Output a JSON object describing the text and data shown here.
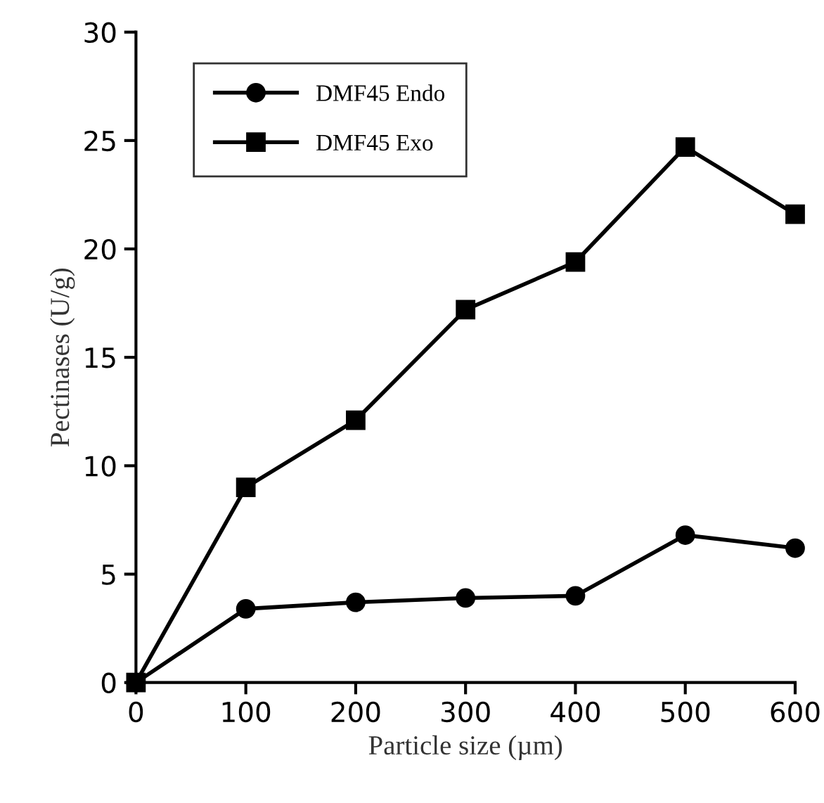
{
  "chart_data": {
    "type": "line",
    "xlabel": "Particle size (µm)",
    "ylabel": "Pectinases (U/g)",
    "x": [
      0,
      100,
      200,
      300,
      400,
      500,
      600
    ],
    "series": [
      {
        "name": "DMF45 Endo",
        "color": "#000000",
        "marker": "circle",
        "values": [
          0,
          3.4,
          3.7,
          3.9,
          4.0,
          6.8,
          6.2
        ]
      },
      {
        "name": "DMF45 Exo",
        "color": "#000000",
        "marker": "square",
        "values": [
          0,
          9.0,
          12.1,
          17.2,
          19.4,
          24.7,
          21.6
        ]
      }
    ],
    "xlim": [
      0,
      600
    ],
    "ylim": [
      0,
      30
    ],
    "xticks": [
      0,
      100,
      200,
      300,
      400,
      500,
      600
    ],
    "yticks": [
      0,
      5,
      10,
      15,
      20,
      25,
      30
    ],
    "grid": false,
    "legend": "top left",
    "line_style": "solid"
  }
}
